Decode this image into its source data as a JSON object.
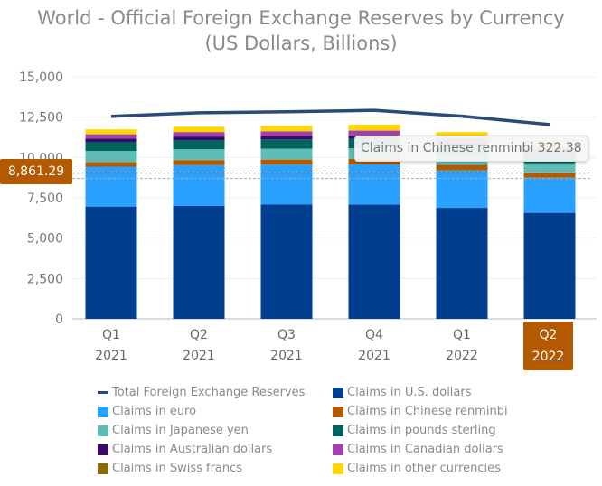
{
  "chart_data": {
    "type": "bar",
    "stacked": true,
    "title": "World - Official Foreign Exchange Reserves by Currency",
    "subtitle": "(US Dollars, Billions)",
    "categories": [
      [
        "Q1",
        "2021"
      ],
      [
        "Q2",
        "2021"
      ],
      [
        "Q3",
        "2021"
      ],
      [
        "Q4",
        "2021"
      ],
      [
        "Q1",
        "2022"
      ],
      [
        "Q2",
        "2022"
      ]
    ],
    "ylim": [
      0,
      15000
    ],
    "yticks": [
      "0",
      "2,500",
      "5,000",
      "7,500",
      "10,000",
      "12,500",
      "15,000"
    ],
    "ytick_values": [
      0,
      2500,
      5000,
      7500,
      10000,
      12500,
      15000
    ],
    "series": [
      {
        "name": "Claims in U.S. dollars",
        "color": "#003f8f",
        "values": [
          6960,
          7000,
          7080,
          7090,
          6880,
          6570
        ]
      },
      {
        "name": "Claims in euro",
        "color": "#2aa0ff",
        "values": [
          2470,
          2530,
          2480,
          2480,
          2320,
          2180
        ]
      },
      {
        "name": "Claims in Chinese renminbi",
        "color": "#b35900",
        "values": [
          290,
          310,
          310,
          340,
          340,
          322.38
        ]
      },
      {
        "name": "Claims in Japanese yen",
        "color": "#5fbcb4",
        "values": [
          690,
          670,
          680,
          660,
          600,
          570
        ]
      },
      {
        "name": "Claims in pounds sterling",
        "color": "#00645e",
        "values": [
          560,
          570,
          570,
          580,
          560,
          500
        ]
      },
      {
        "name": "Claims in Australian dollars",
        "color": "#3a0a6b",
        "values": [
          210,
          220,
          220,
          220,
          210,
          200
        ]
      },
      {
        "name": "Claims in Canadian dollars",
        "color": "#a43fb0",
        "values": [
          250,
          260,
          270,
          290,
          280,
          260
        ]
      },
      {
        "name": "Claims in Swiss francs",
        "color": "#8a6d00",
        "values": [
          20,
          20,
          20,
          20,
          20,
          20
        ]
      },
      {
        "name": "Claims in other currencies",
        "color": "#ffd700",
        "values": [
          290,
          330,
          330,
          360,
          360,
          400
        ]
      }
    ],
    "line_series": {
      "name": "Total Foreign Exchange Reserves",
      "color": "#2b4a7a",
      "values": [
        12550,
        12770,
        12830,
        12920,
        12560,
        12040
      ]
    },
    "legend_position": "bottom",
    "legend_order": [
      "Total Foreign Exchange Reserves",
      "Claims in U.S. dollars",
      "Claims in euro",
      "Claims in Chinese renminbi",
      "Claims in Japanese yen",
      "Claims in pounds sterling",
      "Claims in Australian dollars",
      "Claims in Canadian dollars",
      "Claims in Swiss francs",
      "Claims in other currencies"
    ],
    "tooltip": "Claims in Chinese renminbi 322.38",
    "crosshair_y_label": "8,861.29",
    "crosshair_y_value": 8861.29,
    "highlighted_category": 5
  }
}
